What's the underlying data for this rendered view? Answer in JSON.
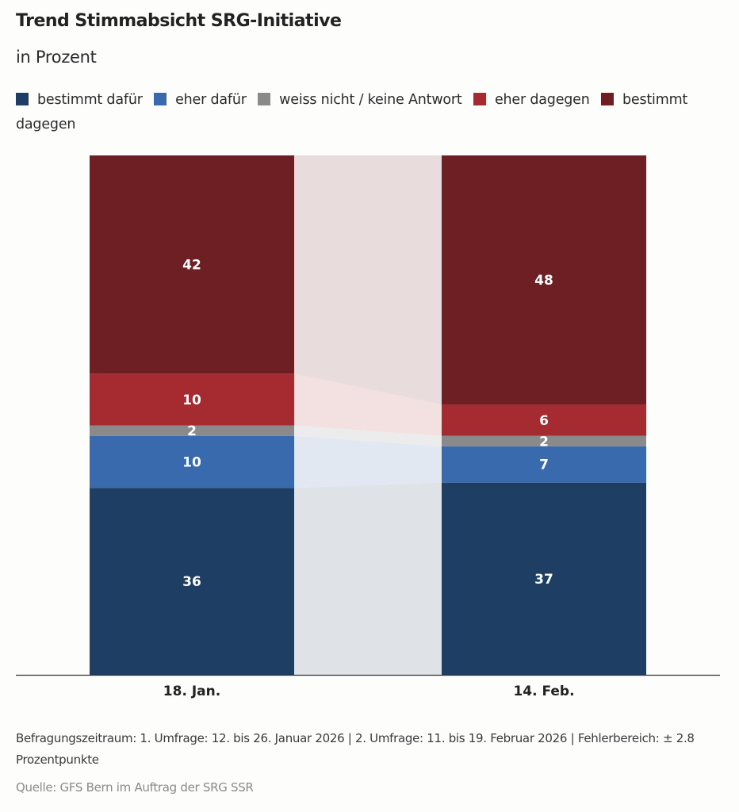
{
  "chart_data": {
    "type": "bar",
    "stacked": true,
    "title": "Trend Stimmabsicht SRG-Initiative",
    "subtitle": "in Prozent",
    "xlabel": "",
    "ylabel": "",
    "ylim": [
      0,
      100
    ],
    "grid": false,
    "legend_position": "top-left",
    "categories": [
      "18. Jan.",
      "14. Feb."
    ],
    "series": [
      {
        "name": "bestimmt dafür",
        "color": "#1f3e63",
        "values": [
          36,
          37
        ]
      },
      {
        "name": "eher dafür",
        "color": "#386aad",
        "values": [
          10,
          7
        ]
      },
      {
        "name": "weiss nicht / keine Antwort",
        "color": "#8a8a8a",
        "values": [
          2,
          2
        ]
      },
      {
        "name": "eher dagegen",
        "color": "#a62b31",
        "values": [
          10,
          6
        ]
      },
      {
        "name": "bestimmt dagegen",
        "color": "#6d1f23",
        "values": [
          42,
          48
        ]
      }
    ],
    "connector_colors": [
      "#dfe3e8",
      "#e1e8f2",
      "#ececec",
      "#f3e0e0",
      "#e9dcdd"
    ]
  },
  "note": "Befragungszeitraum: 1. Umfrage: 12. bis 26. Januar 2026 | 2. Umfrage: 11. bis 19. Februar 2026 | Fehlerbereich: ± 2.8 Prozentpunkte",
  "source": "Quelle: GFS Bern im Auftrag der SRG SSR"
}
